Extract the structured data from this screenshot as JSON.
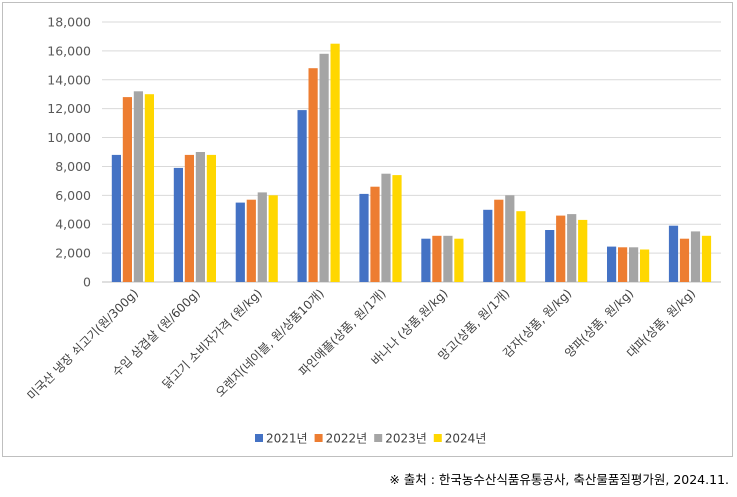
{
  "chart_data": {
    "type": "bar",
    "categories": [
      "미국산 냉장 쇠고기(원/300g)",
      "수입 삼겹살 (원/600g)",
      "닭고기 소비자가격 (원/kg)",
      "오렌지(네이블, 원/상품10개)",
      "파인애플(상품, 원/1개)",
      "바나나 (상품,원/kg)",
      "망고(상품, 원/1개)",
      "감자(상품, 원/kg)",
      "양파(상품, 원/kg)",
      "대파(상품, 원/kg)"
    ],
    "series": [
      {
        "name": "2021년",
        "color": "#4472c4",
        "values": [
          8800,
          7900,
          5500,
          11900,
          6100,
          3000,
          5000,
          3600,
          2450,
          3900
        ]
      },
      {
        "name": "2022년",
        "color": "#ed7d31",
        "values": [
          12800,
          8800,
          5700,
          14800,
          6600,
          3200,
          5700,
          4600,
          2400,
          3000
        ]
      },
      {
        "name": "2023년",
        "color": "#a5a5a5",
        "values": [
          13200,
          9000,
          6200,
          15800,
          7500,
          3200,
          6000,
          4700,
          2400,
          3500
        ]
      },
      {
        "name": "2024년",
        "color": "#ffd700",
        "values": [
          13000,
          8800,
          6000,
          16500,
          7400,
          3000,
          4900,
          4300,
          2250,
          3200
        ]
      }
    ],
    "yticks": [
      "0",
      "2,000",
      "4,000",
      "6,000",
      "8,000",
      "10,000",
      "12,000",
      "14,000",
      "16,000",
      "18,000"
    ],
    "ylim": [
      0,
      18000
    ],
    "grid": true,
    "legend_position": "bottom"
  },
  "source_note": "※ 출처 :  한국농수산식품유통공사,  축산물품질평가원,  2024.11."
}
